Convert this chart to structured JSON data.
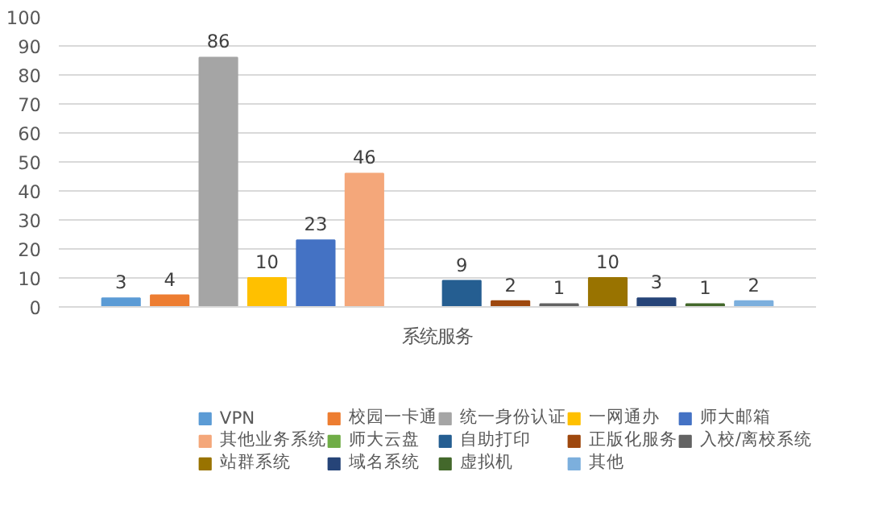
{
  "chart_data": {
    "type": "bar",
    "categories": [
      "系统服务"
    ],
    "ylim": [
      0,
      100
    ],
    "yticks": [
      0,
      10,
      20,
      30,
      40,
      50,
      60,
      70,
      80,
      90,
      100
    ],
    "grid": "y",
    "legend": "bottom",
    "data_labels": true,
    "series": [
      {
        "name": "VPN",
        "color": "#5b9bd5",
        "values": [
          3
        ]
      },
      {
        "name": "校园一卡通",
        "color": "#ed7d31",
        "values": [
          4
        ]
      },
      {
        "name": "统一身份认证",
        "color": "#a5a5a5",
        "values": [
          86
        ]
      },
      {
        "name": "一网通办",
        "color": "#ffc000",
        "values": [
          10
        ]
      },
      {
        "name": "师大邮箱",
        "color": "#4472c4",
        "values": [
          23
        ]
      },
      {
        "name": "其他业务系统",
        "color": "#f4a77a",
        "values": [
          46
        ]
      },
      {
        "name": "师大云盘",
        "color": "#70ad47",
        "values": [
          null
        ]
      },
      {
        "name": "自助打印",
        "color": "#255e91",
        "values": [
          9
        ]
      },
      {
        "name": "正版化服务",
        "color": "#9e480e",
        "values": [
          2
        ]
      },
      {
        "name": "入校/离校系统",
        "color": "#636363",
        "values": [
          1
        ]
      },
      {
        "name": "站群系统",
        "color": "#997300",
        "values": [
          10
        ]
      },
      {
        "name": "域名系统",
        "color": "#264478",
        "values": [
          3
        ]
      },
      {
        "name": "虚拟机",
        "color": "#43682b",
        "values": [
          1
        ]
      },
      {
        "name": "其他",
        "color": "#7cafdd",
        "values": [
          2
        ]
      }
    ]
  }
}
